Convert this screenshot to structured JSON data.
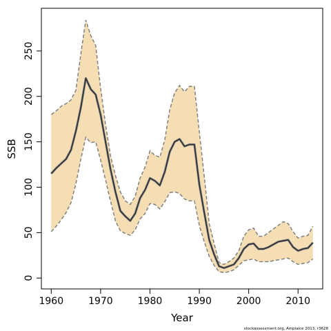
{
  "chart_data": {
    "type": "line",
    "title": "",
    "xlabel": "Year",
    "ylabel": "SSB",
    "xlim": [
      1958,
      2015
    ],
    "ylim": [
      -12,
      297
    ],
    "x_ticks": [
      1960,
      1970,
      1980,
      1990,
      2000,
      2010
    ],
    "y_ticks": [
      0,
      50,
      100,
      150,
      200,
      250
    ],
    "grid": false,
    "legend": "none",
    "x": [
      1960,
      1961,
      1962,
      1963,
      1964,
      1965,
      1966,
      1967,
      1968,
      1969,
      1970,
      1971,
      1972,
      1973,
      1974,
      1975,
      1976,
      1977,
      1978,
      1979,
      1980,
      1981,
      1982,
      1983,
      1984,
      1985,
      1986,
      1987,
      1988,
      1989,
      1990,
      1991,
      1992,
      1993,
      1994,
      1995,
      1996,
      1997,
      1998,
      1999,
      2000,
      2001,
      2002,
      2003,
      2004,
      2005,
      2006,
      2007,
      2008,
      2009,
      2010,
      2011,
      2012,
      2013
    ],
    "series": [
      {
        "role": "estimate",
        "values": [
          115,
          121,
          126,
          131,
          141,
          162,
          188,
          220,
          208,
          202,
          180,
          150,
          120,
          95,
          74,
          68,
          63,
          71,
          88,
          97,
          110,
          107,
          102,
          117,
          139,
          150,
          153,
          145,
          147,
          147,
          103,
          72,
          42,
          26,
          13,
          11,
          13,
          15,
          22,
          32,
          37,
          38,
          32,
          32,
          34,
          37,
          40,
          41,
          42,
          34,
          30,
          32,
          33,
          39
        ]
      },
      {
        "role": "upper",
        "values": [
          180,
          184,
          189,
          192,
          196,
          207,
          247,
          284,
          267,
          256,
          209,
          169,
          135,
          113,
          95,
          85,
          81,
          90,
          110,
          122,
          140,
          135,
          133,
          152,
          185,
          204,
          212,
          205,
          211,
          211,
          161,
          112,
          60,
          38,
          17,
          15,
          18,
          22,
          30,
          46,
          53,
          55,
          46,
          46,
          50,
          54,
          58,
          62,
          60,
          51,
          44,
          46,
          47,
          57
        ]
      },
      {
        "role": "lower",
        "values": [
          51,
          57,
          64,
          72,
          83,
          104,
          131,
          155,
          149,
          150,
          130,
          108,
          85,
          63,
          52,
          49,
          47,
          53,
          65,
          71,
          82,
          81,
          76,
          84,
          94,
          95,
          93,
          87,
          85,
          85,
          58,
          40,
          24,
          14,
          7,
          6,
          7,
          9,
          14,
          19,
          20,
          21,
          18,
          18,
          18,
          19,
          20,
          21,
          22,
          18,
          15,
          16,
          17,
          21
        ]
      }
    ],
    "colors": {
      "band_fill": "#f5deb3",
      "band_edge": "#808080",
      "line": "#303030",
      "axis": "#000000"
    },
    "footnote": "stockassessment.org, Amplaice 2013, r3628"
  }
}
